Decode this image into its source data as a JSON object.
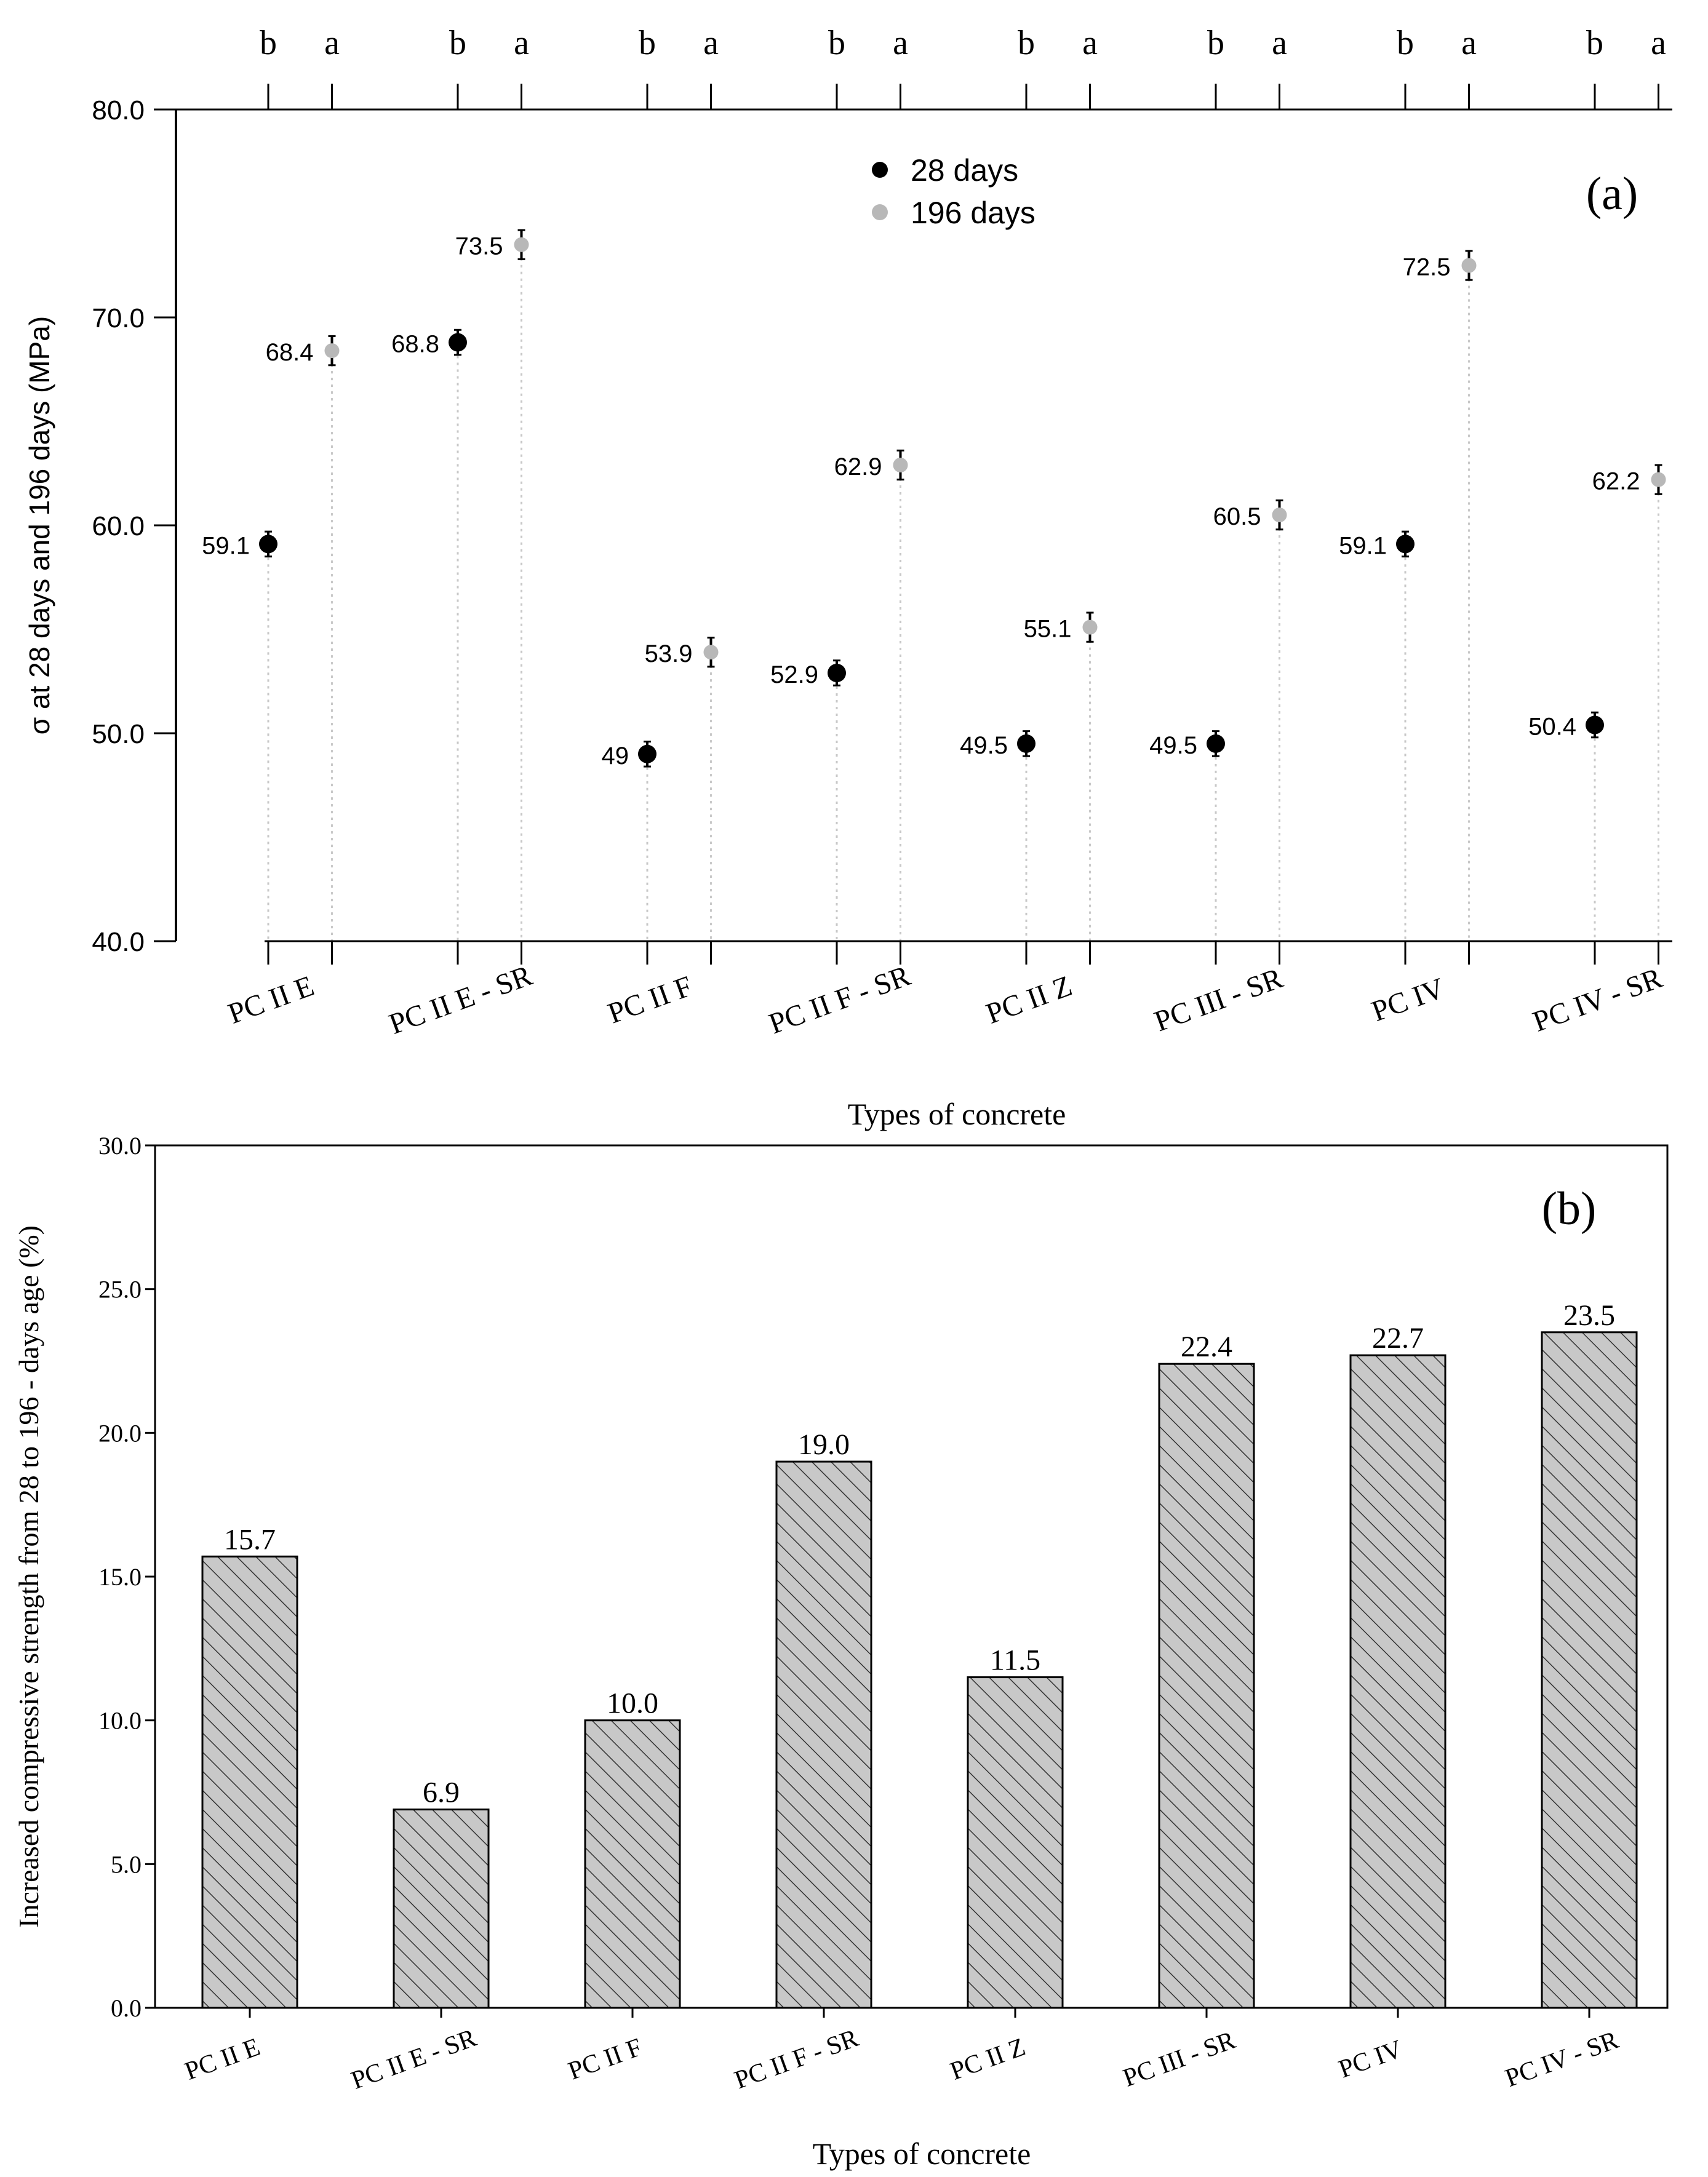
{
  "chart_data": [
    {
      "type": "scatter",
      "panel_label": "(a)",
      "ylabel": "σ at 28 days and 196 days (MPa)",
      "xlabel": "Types of concrete",
      "ylim": [
        40,
        80
      ],
      "yticks": [
        "40.0",
        "50.0",
        "60.0",
        "70.0",
        "80.0"
      ],
      "categories": [
        "PC II E",
        "PC II E - SR",
        "PC II F",
        "PC II F - SR",
        "PC II Z",
        "PC III - SR",
        "PC IV",
        "PC IV - SR"
      ],
      "top_tick_labels": [
        "b",
        "a"
      ],
      "series": [
        {
          "name": "28 days",
          "color": "#000000",
          "values": [
            59.1,
            68.8,
            49,
            52.9,
            49.5,
            49.5,
            59.1,
            50.4
          ],
          "labels": [
            "59.1",
            "68.8",
            "49",
            "52.9",
            "49.5",
            "49.5",
            "59.1",
            "50.4"
          ],
          "error": 0.6
        },
        {
          "name": "196 days",
          "color": "#b8b8b8",
          "values": [
            68.4,
            73.5,
            53.9,
            62.9,
            55.1,
            60.5,
            72.5,
            62.2
          ],
          "labels": [
            "68.4",
            "73.5",
            "53.9",
            "62.9",
            "55.1",
            "60.5",
            "72.5",
            "62.2"
          ],
          "error": 0.7
        }
      ]
    },
    {
      "type": "bar",
      "panel_label": "(b)",
      "ylabel": "Increased compressive strength from 28 to 196 - days age (%)",
      "xlabel": "Types of concrete",
      "ylim": [
        0,
        30
      ],
      "yticks": [
        "0.0",
        "5.0",
        "10.0",
        "15.0",
        "20.0",
        "25.0",
        "30.0"
      ],
      "categories": [
        "PC II E",
        "PC II E - SR",
        "PC II F",
        "PC II F - SR",
        "PC II Z",
        "PC III - SR",
        "PC IV",
        "PC IV - SR"
      ],
      "values": [
        15.7,
        6.9,
        10.0,
        19.0,
        11.5,
        22.4,
        22.7,
        23.5
      ],
      "labels": [
        "15.7",
        "6.9",
        "10.0",
        "19.0",
        "11.5",
        "22.4",
        "22.7",
        "23.5"
      ],
      "bar_fill": "#c8c8c8",
      "hatch": "diagonal"
    }
  ]
}
